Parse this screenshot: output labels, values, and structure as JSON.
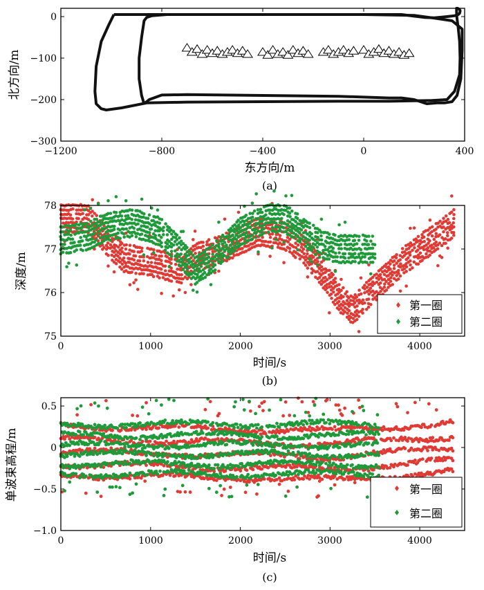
{
  "colors": {
    "first": "#e03a35",
    "second": "#1e9a3a",
    "axis": "#000000",
    "track": "#111111"
  },
  "chart_data": [
    {
      "id": "a",
      "type": "line",
      "caption": "(a)",
      "xlabel": "东方向/m",
      "ylabel": "北方向/m",
      "xlim": [
        -1200,
        400
      ],
      "ylim": [
        -300,
        20
      ],
      "x_ticks": [
        -1200,
        -800,
        -400,
        0,
        400
      ],
      "x_tick_labels": [
        "−1200",
        "−800",
        "−400",
        "0",
        "400"
      ],
      "y_ticks": [
        0,
        -100,
        -200,
        -300
      ],
      "y_tick_labels": [
        "0",
        "−100",
        "−200",
        "−300"
      ],
      "series": [
        {
          "name": "track loop 1",
          "x": [
            -990,
            -1010,
            -1040,
            -1060,
            -1065,
            -1060,
            -1040,
            -1020,
            -960,
            -860,
            -700,
            -400,
            -100,
            100,
            270,
            330,
            360,
            380,
            382,
            380,
            375,
            370,
            368,
            368,
            372,
            378,
            382,
            382,
            380,
            375,
            360,
            330,
            280,
            240,
            200,
            150,
            100,
            -100,
            -400,
            -600,
            -990
          ],
          "y": [
            5,
            -20,
            -60,
            -120,
            -180,
            -210,
            -222,
            -225,
            -220,
            -208,
            -206,
            -205,
            -204,
            -204,
            -202,
            -200,
            -180,
            -140,
            -100,
            -60,
            -30,
            -5,
            10,
            20,
            20,
            18,
            15,
            12,
            8,
            5,
            2,
            0,
            -3,
            -2,
            1,
            5,
            5,
            5,
            5,
            5,
            5
          ]
        },
        {
          "name": "track loop 2",
          "x": [
            -870,
            -880,
            -890,
            -890,
            -880,
            -870,
            -860,
            -840,
            -780,
            -600,
            -400,
            -200,
            0,
            200,
            260,
            350,
            390,
            390,
            385,
            370,
            350,
            320,
            290,
            250,
            200,
            150,
            100,
            -100,
            -400,
            -700,
            -800,
            -850,
            -870
          ],
          "y": [
            -210,
            -190,
            -150,
            -100,
            -50,
            -10,
            -2,
            2,
            5,
            5,
            5,
            5,
            5,
            3,
            -2,
            -10,
            -30,
            -80,
            -150,
            -190,
            -205,
            -208,
            -208,
            -210,
            -200,
            -196,
            -196,
            -192,
            -190,
            -188,
            -189,
            -200,
            -210
          ]
        }
      ],
      "markers": {
        "name": "triangles",
        "x": [
          -700,
          -680,
          -660,
          -640,
          -620,
          -600,
          -580,
          -560,
          -540,
          -520,
          -500,
          -480,
          -460,
          -400,
          -380,
          -360,
          -340,
          -320,
          -300,
          -280,
          -260,
          -240,
          -220,
          -160,
          -140,
          -120,
          -100,
          -80,
          -60,
          -40,
          0,
          20,
          40,
          60,
          80,
          100,
          120,
          140,
          160,
          180
        ],
        "y": [
          -75,
          -85,
          -78,
          -90,
          -80,
          -88,
          -82,
          -90,
          -85,
          -80,
          -88,
          -82,
          -90,
          -85,
          -92,
          -80,
          -90,
          -85,
          -92,
          -80,
          -88,
          -82,
          -90,
          -85,
          -80,
          -90,
          -85,
          -80,
          -88,
          -82,
          -80,
          -90,
          -85,
          -78,
          -88,
          -82,
          -90,
          -85,
          -92,
          -88
        ]
      }
    },
    {
      "id": "b",
      "type": "scatter",
      "caption": "(b)",
      "xlabel": "时间/s",
      "ylabel": "深度/m",
      "xlim": [
        0,
        4500
      ],
      "ylim": [
        75,
        78
      ],
      "x_ticks": [
        0,
        1000,
        2000,
        3000,
        4000
      ],
      "x_tick_labels": [
        "0",
        "1000",
        "2000",
        "3000",
        "4000"
      ],
      "y_ticks": [
        75,
        76,
        77,
        78
      ],
      "y_tick_labels": [
        "75",
        "76",
        "77",
        "78"
      ],
      "legend": [
        "第一圈",
        "第二圈"
      ],
      "legend_position": "bottom-right",
      "series": [
        {
          "name": "第一圈",
          "x": [
            0,
            300,
            500,
            700,
            1000,
            1200,
            1350,
            1500,
            1800,
            2000,
            2200,
            2500,
            2700,
            2900,
            3100,
            3250,
            3400,
            3600,
            3800,
            4000,
            4200,
            4380
          ],
          "y": [
            77.7,
            77.7,
            77.2,
            76.8,
            76.7,
            76.6,
            76.5,
            76.8,
            77.0,
            77.2,
            77.4,
            77.3,
            77.0,
            76.5,
            75.9,
            75.6,
            75.9,
            76.3,
            76.7,
            77.0,
            77.3,
            77.6
          ]
        },
        {
          "name": "第二圈",
          "x": [
            0,
            300,
            500,
            800,
            1100,
            1300,
            1500,
            1700,
            2000,
            2300,
            2500,
            2700,
            2900,
            3100,
            3300,
            3500
          ],
          "y": [
            77.2,
            77.3,
            77.5,
            77.6,
            77.4,
            77.0,
            76.5,
            76.8,
            77.4,
            77.7,
            77.7,
            77.4,
            77.1,
            77.0,
            77.0,
            77.0
          ]
        }
      ]
    },
    {
      "id": "c",
      "type": "scatter",
      "caption": "(c)",
      "xlabel": "时间/s",
      "ylabel": "单波束高程/m",
      "xlim": [
        0,
        4500
      ],
      "ylim": [
        -1.0,
        0.6
      ],
      "x_ticks": [
        0,
        1000,
        2000,
        3000,
        4000
      ],
      "x_tick_labels": [
        "0",
        "1000",
        "2000",
        "3000",
        "4000"
      ],
      "y_ticks": [
        0.5,
        0,
        -0.5,
        -1.0
      ],
      "y_tick_labels": [
        "0.5",
        "0",
        "−0.5",
        "−1.0"
      ],
      "legend": [
        "第一圈",
        "第二圈"
      ],
      "legend_position": "bottom-right",
      "series": [
        {
          "name": "第一圈",
          "x_range": [
            0,
            4380
          ],
          "band_centers": [
            0.26,
            0.1,
            -0.05,
            -0.2,
            -0.33
          ],
          "drift": [
            0,
            0,
            3000,
            -0.06,
            4380,
            0.04
          ]
        },
        {
          "name": "第二圈",
          "x_range": [
            0,
            3550
          ],
          "band_centers": [
            0.28,
            0.15,
            0.03,
            -0.08,
            -0.2,
            -0.32
          ],
          "drift": [
            0,
            0,
            3550,
            0
          ]
        }
      ]
    }
  ]
}
